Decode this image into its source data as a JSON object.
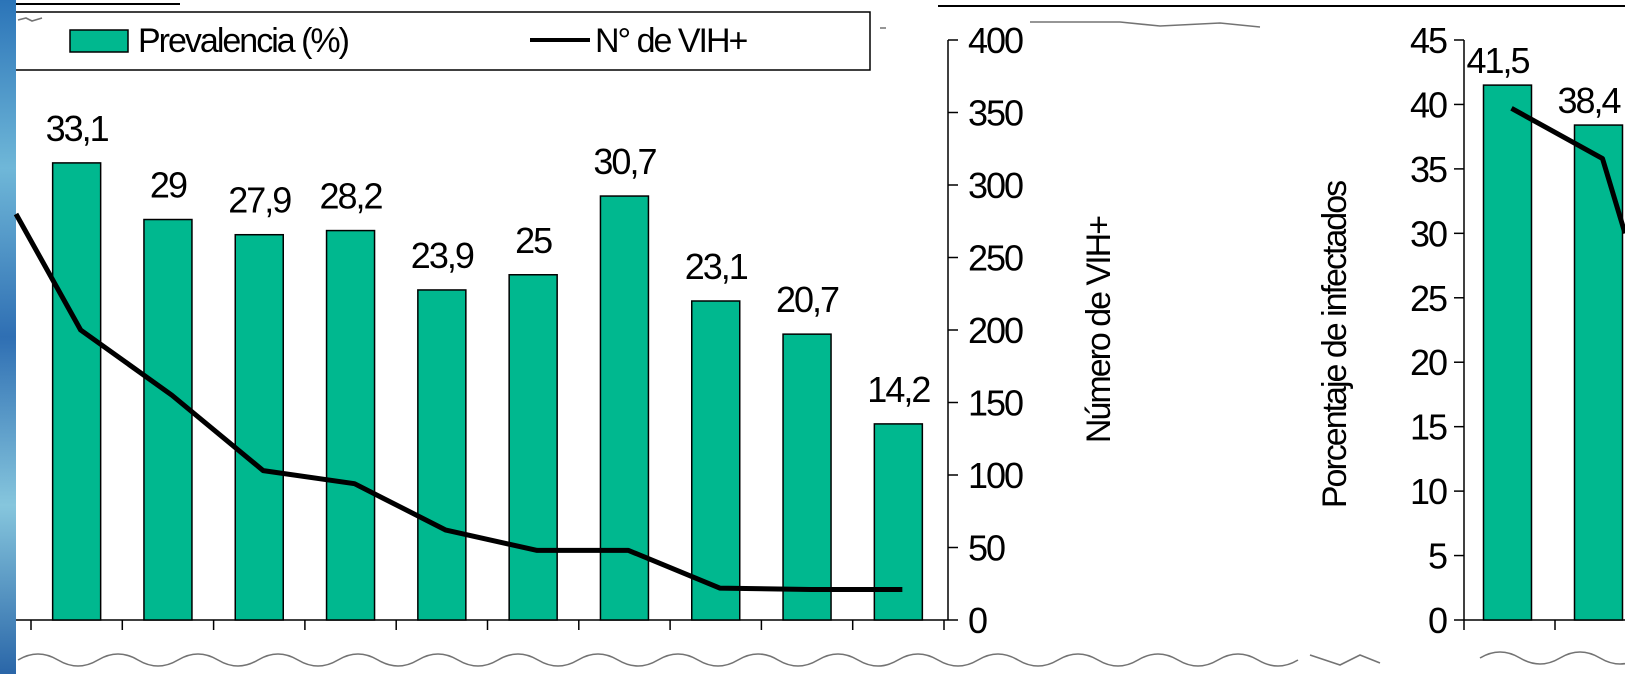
{
  "chart_data": [
    {
      "type": "bar",
      "bar_color": "#00b88f",
      "line_color": "#000000",
      "legend": {
        "bar_label": "Prevalencia (%)",
        "line_label": "N° de VIH+"
      },
      "ylabel_right": "Número de VIH+",
      "y2lim": [
        0,
        400
      ],
      "y2ticks": [
        "0",
        "50",
        "100",
        "150",
        "200",
        "250",
        "300",
        "350",
        "400"
      ],
      "bar_value_labels": [
        "33,1",
        "29",
        "27,9",
        "28,2",
        "23,9",
        "25",
        "30,7",
        "23,1",
        "20,7",
        "14,2"
      ],
      "series": [
        {
          "name": "Prevalencia (%)",
          "values": [
            33.1,
            29,
            27.9,
            28.2,
            23.9,
            25,
            30.7,
            23.1,
            20.7,
            14.2
          ]
        },
        {
          "name": "N° de VIH+",
          "values": [
            200,
            155,
            103,
            94,
            62,
            48,
            48,
            22,
            21,
            21
          ]
        }
      ],
      "line_start_value": 280
    },
    {
      "type": "bar",
      "bar_color": "#00b88f",
      "line_color": "#000000",
      "ylabel": "Porcentaje de infectados",
      "ylim": [
        0,
        45
      ],
      "yticks": [
        "0",
        "5",
        "10",
        "15",
        "20",
        "25",
        "30",
        "35",
        "40",
        "45"
      ],
      "bar_value_labels": [
        "41,5",
        "38,4"
      ],
      "series": [
        {
          "name": "Porcentaje de infectados",
          "values": [
            41.5,
            38.4
          ]
        }
      ],
      "line_values": [
        39.7,
        35.8
      ]
    }
  ]
}
